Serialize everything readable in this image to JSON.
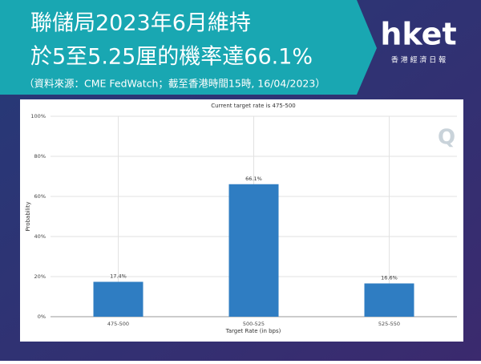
{
  "header": {
    "title_line1": "聯儲局2023年6月維持",
    "title_line2": "於5至5.25厘的機率達66.1%",
    "source": "（資料來源：CME FedWatch；截至香港時間15時, 16/04/2023）",
    "logo": "hket",
    "logo_sub": "香 港 經 濟 日 報"
  },
  "chart_data": {
    "type": "bar",
    "title": "Current target rate is 475-500",
    "watermark": "Q",
    "categories": [
      "475-500",
      "500-525",
      "525-550"
    ],
    "values": [
      17.4,
      66.1,
      16.6
    ],
    "value_labels": [
      "17.4%",
      "66.1%",
      "16.6%"
    ],
    "color": "#2f7dc2",
    "x_label": "Target Rate (in bps)",
    "y_label": "Probability",
    "ylim": [
      0,
      100
    ],
    "yticks": [
      {
        "value": 0,
        "label": "0%"
      },
      {
        "value": 20,
        "label": "20%"
      },
      {
        "value": 40,
        "label": "40%"
      },
      {
        "value": 60,
        "label": "60%"
      },
      {
        "value": 80,
        "label": "80%"
      },
      {
        "value": 100,
        "label": "100%"
      }
    ],
    "grid": true
  }
}
